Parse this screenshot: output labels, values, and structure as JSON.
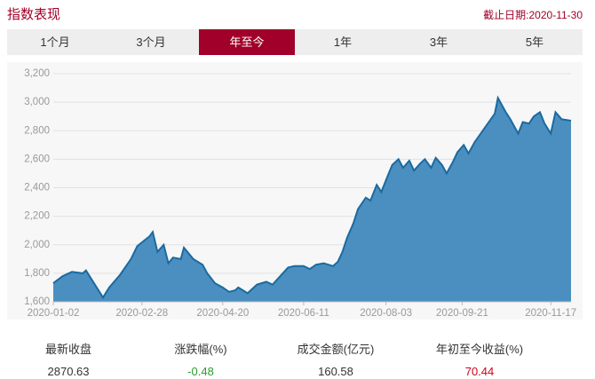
{
  "header": {
    "title": "指数表现",
    "date": "截止日期:2020-11-30"
  },
  "tabs": [
    "1个月",
    "3个月",
    "年至今",
    "1年",
    "3年",
    "5年"
  ],
  "active_tab": 2,
  "chart_data": {
    "type": "area",
    "color": "#4b8fc0",
    "line_color": "#1a6aa0",
    "grid": true,
    "x": [
      "2020-01-02",
      "2020-01-08",
      "2020-01-14",
      "2020-01-21",
      "2020-01-23",
      "2020-02-03",
      "2020-02-07",
      "2020-02-14",
      "2020-02-21",
      "2020-02-25",
      "2020-03-04",
      "2020-03-06",
      "2020-03-09",
      "2020-03-13",
      "2020-03-16",
      "2020-03-19",
      "2020-03-24",
      "2020-03-26",
      "2020-04-01",
      "2020-04-07",
      "2020-04-10",
      "2020-04-15",
      "2020-04-20",
      "2020-04-24",
      "2020-04-28",
      "2020-04-30",
      "2020-05-06",
      "2020-05-12",
      "2020-05-18",
      "2020-05-22",
      "2020-05-27",
      "2020-06-01",
      "2020-06-05",
      "2020-06-11",
      "2020-06-15",
      "2020-06-19",
      "2020-06-24",
      "2020-06-30",
      "2020-07-03",
      "2020-07-06",
      "2020-07-09",
      "2020-07-13",
      "2020-07-16",
      "2020-07-21",
      "2020-07-24",
      "2020-07-28",
      "2020-07-31",
      "2020-08-04",
      "2020-08-07",
      "2020-08-11",
      "2020-08-14",
      "2020-08-18",
      "2020-08-21",
      "2020-08-25",
      "2020-08-28",
      "2020-09-01",
      "2020-09-04",
      "2020-09-08",
      "2020-09-11",
      "2020-09-15",
      "2020-09-18",
      "2020-09-22",
      "2020-09-25",
      "2020-09-29",
      "2020-10-12",
      "2020-10-14",
      "2020-10-19",
      "2020-10-22",
      "2020-10-27",
      "2020-10-30",
      "2020-11-03",
      "2020-11-06",
      "2020-11-10",
      "2020-11-13",
      "2020-11-17",
      "2020-11-20",
      "2020-11-24",
      "2020-11-30"
    ],
    "values": [
      1730,
      1780,
      1810,
      1800,
      1820,
      1630,
      1700,
      1790,
      1900,
      1990,
      2060,
      2090,
      1950,
      2000,
      1870,
      1910,
      1900,
      1980,
      1900,
      1860,
      1800,
      1730,
      1700,
      1670,
      1680,
      1700,
      1660,
      1720,
      1740,
      1720,
      1780,
      1840,
      1850,
      1850,
      1830,
      1860,
      1870,
      1850,
      1880,
      1950,
      2050,
      2150,
      2250,
      2330,
      2310,
      2420,
      2370,
      2480,
      2560,
      2600,
      2540,
      2590,
      2520,
      2570,
      2600,
      2540,
      2610,
      2560,
      2500,
      2580,
      2650,
      2700,
      2640,
      2720,
      2920,
      3030,
      2930,
      2880,
      2780,
      2860,
      2850,
      2900,
      2930,
      2850,
      2780,
      2930,
      2880,
      2870
    ],
    "xlim": [
      "2020-01-02",
      "2020-11-30"
    ],
    "xticks": [
      "2020-01-02",
      "2020-02-28",
      "2020-04-20",
      "2020-06-11",
      "2020-08-03",
      "2020-09-21",
      "2020-11-17"
    ],
    "ylim": [
      1600,
      3200
    ],
    "yticks": [
      {
        "value": 1600,
        "label": "1,600"
      },
      {
        "value": 1800,
        "label": "1,800"
      },
      {
        "value": 2000,
        "label": "2,000"
      },
      {
        "value": 2200,
        "label": "2,200"
      },
      {
        "value": 2400,
        "label": "2,400"
      },
      {
        "value": 2600,
        "label": "2,600"
      },
      {
        "value": 2800,
        "label": "2,800"
      },
      {
        "value": 3000,
        "label": "3,000"
      },
      {
        "value": 3200,
        "label": "3,200"
      }
    ]
  },
  "stats": [
    {
      "label": "最新收盘",
      "value": 2870.63
    },
    {
      "label": "涨跌幅(%)",
      "value": -0.48
    },
    {
      "label": "成交金额(亿元)",
      "value": 160.58
    },
    {
      "label": "年初至今收益(%)",
      "value": 70.44
    }
  ]
}
